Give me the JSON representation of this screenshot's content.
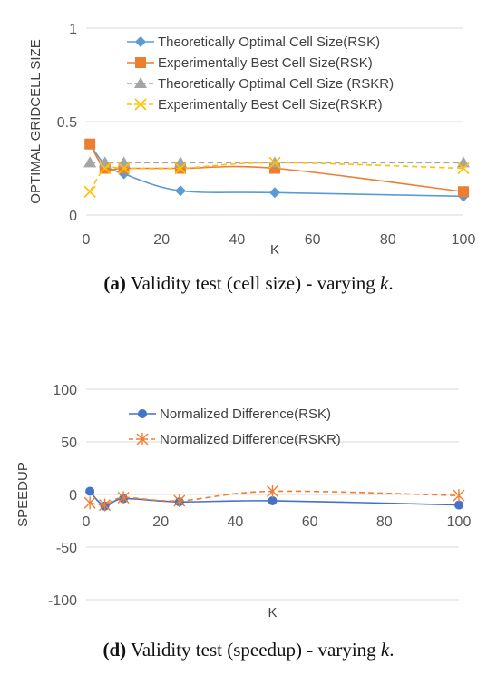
{
  "chart_data": [
    {
      "type": "line",
      "xlabel": "K",
      "ylabel": "OPTIMAL GRIDCELL SIZE",
      "xlim": [
        0,
        100
      ],
      "ylim": [
        0,
        1
      ],
      "xticks": [
        "0",
        "20",
        "40",
        "60",
        "80",
        "100"
      ],
      "yticks": [
        "0",
        "0.5",
        "1"
      ],
      "grid": "horizontal",
      "legend_position": "top",
      "series": [
        {
          "name": "Theoretically Optimal Cell Size(RSK)",
          "color": "#5B9BD5",
          "marker": "diamond",
          "dash": "solid",
          "x": [
            1,
            5,
            10,
            25,
            50,
            100
          ],
          "y": [
            0.38,
            0.27,
            0.22,
            0.13,
            0.12,
            0.1
          ]
        },
        {
          "name": "Experimentally Best Cell Size(RSK)",
          "color": "#ED7D31",
          "marker": "square",
          "dash": "solid",
          "x": [
            1,
            5,
            10,
            25,
            50,
            100
          ],
          "y": [
            0.38,
            0.25,
            0.25,
            0.25,
            0.25,
            0.125
          ]
        },
        {
          "name": "Theoretically Optimal Cell Size (RSKR)",
          "color": "#A5A5A5",
          "marker": "triangle",
          "dash": "dashed",
          "x": [
            1,
            5,
            10,
            25,
            50,
            100
          ],
          "y": [
            0.28,
            0.28,
            0.28,
            0.28,
            0.28,
            0.28
          ]
        },
        {
          "name": "Experimentally Best Cell Size(RSKR)",
          "color": "#FFC000",
          "marker": "x",
          "dash": "dashed",
          "x": [
            1,
            5,
            10,
            25,
            50,
            100
          ],
          "y": [
            0.125,
            0.25,
            0.25,
            0.25,
            0.28,
            0.25
          ]
        }
      ]
    },
    {
      "type": "line",
      "xlabel": "K",
      "ylabel": "SPEEDUP",
      "xlim": [
        0,
        100
      ],
      "ylim": [
        -100,
        100
      ],
      "xticks": [
        "0",
        "20",
        "40",
        "60",
        "80",
        "100"
      ],
      "yticks": [
        "100",
        "50",
        "0",
        "-50",
        "-100"
      ],
      "grid": "horizontal",
      "legend_position": "top",
      "series": [
        {
          "name": "Normalized Difference(RSK)",
          "color": "#4472C4",
          "marker": "circle",
          "dash": "solid",
          "x": [
            1,
            5,
            10,
            25,
            50,
            100
          ],
          "y": [
            3,
            -11,
            -4,
            -7,
            -6,
            -10
          ]
        },
        {
          "name": "Normalized Difference(RSKR)",
          "color": "#ED7D31",
          "marker": "asterisk",
          "dash": "dashed",
          "x": [
            1,
            5,
            10,
            25,
            50,
            100
          ],
          "y": [
            -8,
            -10,
            -3,
            -6,
            3,
            -1
          ]
        }
      ]
    }
  ],
  "captions": {
    "a": {
      "label": "(a)",
      "text": "Validity test (cell size) - varying ",
      "var": "k",
      "end": "."
    },
    "d": {
      "label": "(d)",
      "text": "Validity test (speedup) - varying ",
      "var": "k",
      "end": "."
    }
  }
}
